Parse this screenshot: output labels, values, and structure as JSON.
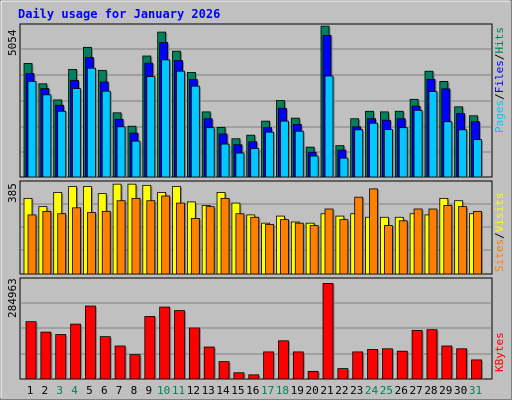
{
  "title": "Daily usage for January 2026",
  "colors": {
    "background": "#c0c0c0",
    "title": "#0000ff",
    "hits": "#00805c",
    "files": "#0000ff",
    "pages": "#00c8ff",
    "visits": "#ffff00",
    "sites": "#ff8000",
    "kbytes": "#ff0000",
    "weekend_label": "#00805c",
    "weekday_label": "#000000"
  },
  "chart_data": [
    {
      "type": "bar",
      "name": "hits-files-pages",
      "max_label": "5054",
      "ylim": [
        0,
        5054
      ],
      "legend": [
        "Pages",
        "/",
        "Files",
        "/",
        "Hits"
      ],
      "categories": [
        "1",
        "2",
        "3",
        "4",
        "5",
        "6",
        "7",
        "8",
        "9",
        "10",
        "11",
        "12",
        "13",
        "14",
        "15",
        "16",
        "17",
        "18",
        "19",
        "20",
        "21",
        "22",
        "23",
        "24",
        "25",
        "26",
        "27",
        "28",
        "29",
        "30",
        "31"
      ],
      "weekend_days": [
        3,
        4,
        10,
        11,
        17,
        18,
        24,
        25,
        31
      ],
      "series": [
        {
          "name": "Hits",
          "values": [
            3800,
            3120,
            2580,
            3600,
            4340,
            3570,
            2150,
            1700,
            4050,
            4850,
            4210,
            3500,
            2180,
            1660,
            1280,
            1400,
            1870,
            2560,
            1970,
            1000,
            5050,
            1050,
            1950,
            2200,
            2180,
            2200,
            2600,
            3540,
            3200,
            2350,
            2050
          ]
        },
        {
          "name": "Files",
          "values": [
            3460,
            2960,
            2400,
            3230,
            4000,
            3180,
            1930,
            1470,
            3810,
            4500,
            3900,
            3260,
            1950,
            1440,
            1080,
            1180,
            1650,
            2300,
            1760,
            830,
            4740,
            900,
            1680,
            1950,
            1900,
            1950,
            2370,
            3270,
            2950,
            2120,
            1850
          ]
        },
        {
          "name": "Pages",
          "values": [
            3200,
            2750,
            2200,
            2960,
            3640,
            2870,
            1680,
            1200,
            3360,
            3920,
            3540,
            3040,
            1650,
            1100,
            800,
            950,
            1500,
            1870,
            1530,
            700,
            3380,
            630,
            1580,
            1800,
            1590,
            1650,
            2230,
            2860,
            1850,
            1580,
            1250
          ]
        }
      ]
    },
    {
      "type": "bar",
      "name": "visits-sites",
      "max_label": "385",
      "ylim": [
        0,
        385
      ],
      "legend": [
        "Sites",
        "/",
        "Visits"
      ],
      "categories": [
        "1",
        "2",
        "3",
        "4",
        "5",
        "6",
        "7",
        "8",
        "9",
        "10",
        "11",
        "12",
        "13",
        "14",
        "15",
        "16",
        "17",
        "18",
        "19",
        "20",
        "21",
        "22",
        "23",
        "24",
        "25",
        "26",
        "27",
        "28",
        "29",
        "30",
        "31"
      ],
      "series": [
        {
          "name": "Visits",
          "values": [
            320,
            285,
            345,
            370,
            370,
            340,
            380,
            380,
            375,
            345,
            370,
            305,
            290,
            345,
            300,
            250,
            215,
            245,
            220,
            215,
            255,
            245,
            255,
            240,
            240,
            240,
            255,
            250,
            320,
            310,
            255
          ]
        },
        {
          "name": "Sites",
          "values": [
            250,
            265,
            255,
            280,
            260,
            265,
            310,
            320,
            310,
            330,
            300,
            235,
            285,
            320,
            255,
            240,
            210,
            230,
            215,
            205,
            275,
            230,
            325,
            360,
            205,
            225,
            275,
            275,
            290,
            285,
            265
          ]
        }
      ]
    },
    {
      "type": "bar",
      "name": "kbytes",
      "max_label": "284963",
      "ylim": [
        0,
        284963
      ],
      "legend": [
        "KBytes"
      ],
      "categories": [
        "1",
        "2",
        "3",
        "4",
        "5",
        "6",
        "7",
        "8",
        "9",
        "10",
        "11",
        "12",
        "13",
        "14",
        "15",
        "16",
        "17",
        "18",
        "19",
        "20",
        "21",
        "22",
        "23",
        "24",
        "25",
        "26",
        "27",
        "28",
        "29",
        "30",
        "31"
      ],
      "series": [
        {
          "name": "KBytes",
          "values": [
            165000,
            135000,
            128000,
            158000,
            210000,
            122000,
            95000,
            70000,
            180000,
            207000,
            197000,
            147000,
            92000,
            50000,
            18000,
            12000,
            78000,
            110000,
            78000,
            22000,
            275000,
            30000,
            78000,
            85000,
            87000,
            80000,
            140000,
            142000,
            95000,
            87000,
            55000
          ]
        }
      ]
    }
  ]
}
